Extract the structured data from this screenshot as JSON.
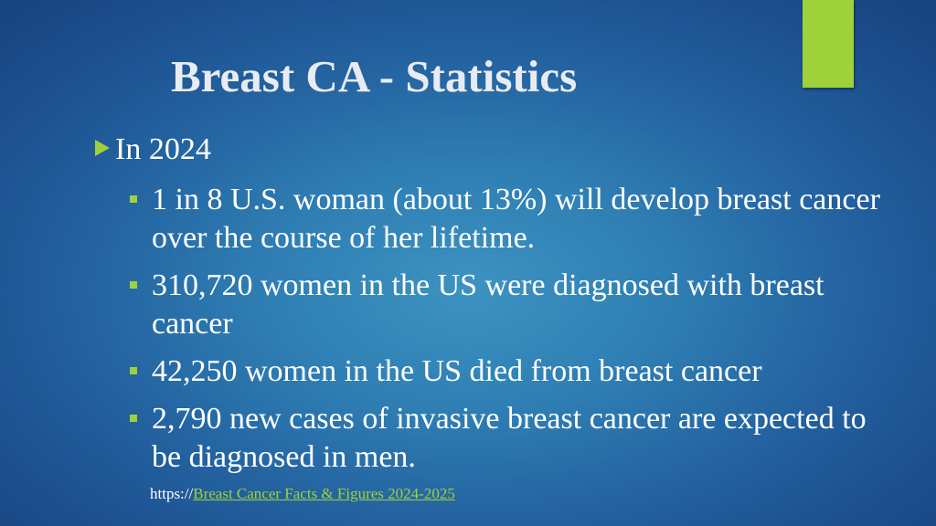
{
  "slide": {
    "title": "Breast CA - Statistics",
    "heading": "In 2024",
    "bullets": [
      "1 in 8 U.S. woman (about 13%) will develop breast cancer over the course of her lifetime.",
      "310,720 women in the US were diagnosed with breast cancer",
      "42,250 women in the US died from breast cancer",
      "2,790 new cases of invasive breast cancer are expected to be diagnosed in men."
    ],
    "source_prefix": "https://",
    "source_link": "Breast Cancer Facts & Figures 2024-2025"
  },
  "colors": {
    "accent": "#9fd13b",
    "background": "#2f7fb4",
    "text": "#ffffff"
  },
  "icons": {
    "heading_bullet": "triangle-arrow-icon",
    "sub_bullet": "square-bullet-icon"
  }
}
